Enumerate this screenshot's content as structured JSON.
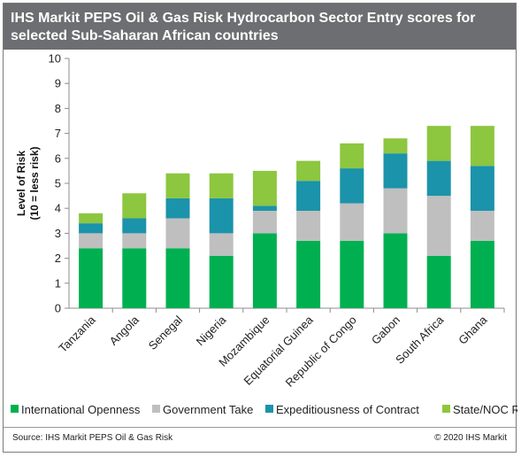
{
  "title": "IHS Markit PEPS Oil & Gas Risk Hydrocarbon Sector Entry scores for selected Sub-Saharan African countries",
  "source": "Source: IHS Markit PEPS Oil & Gas Risk",
  "copyright": "© 2020 IHS Markit",
  "colors": {
    "title_bar": "#6d6e71",
    "international_openness": "#00b050",
    "government_take": "#bfbfbf",
    "expeditiousness": "#1b93aa",
    "state_noc": "#8dc63f"
  },
  "chart_data": {
    "type": "bar",
    "stacked": true,
    "title": "IHS Markit PEPS Oil & Gas Risk Hydrocarbon Sector Entry scores for selected Sub-Saharan African countries",
    "ylabel": "Level of Risk\n(10 = less risk)",
    "xlabel": "",
    "ylim": [
      0,
      10
    ],
    "yticks": [
      0,
      1,
      2,
      3,
      4,
      5,
      6,
      7,
      8,
      9,
      10
    ],
    "grid": false,
    "legend_position": "bottom",
    "categories": [
      "Tanzania",
      "Angola",
      "Senegal",
      "Nigeria",
      "Mozambique",
      "Equatorial Guinea",
      "Republic of Congo",
      "Gabon",
      "South Africa",
      "Ghana"
    ],
    "series": [
      {
        "name": "International Openness",
        "color": "#00b050",
        "values": [
          2.4,
          2.4,
          2.4,
          2.1,
          3.0,
          2.7,
          2.7,
          3.0,
          2.1,
          2.7
        ]
      },
      {
        "name": "Government Take",
        "color": "#bfbfbf",
        "values": [
          0.6,
          0.6,
          1.2,
          0.9,
          0.9,
          1.2,
          1.5,
          1.8,
          2.4,
          1.2
        ]
      },
      {
        "name": "Expeditiousness of Contract",
        "color": "#1b93aa",
        "values": [
          0.4,
          0.6,
          0.8,
          1.4,
          0.2,
          1.2,
          1.4,
          1.4,
          1.4,
          1.8
        ]
      },
      {
        "name": "State/NOC Role",
        "color": "#8dc63f",
        "values": [
          0.4,
          1.0,
          1.0,
          1.0,
          1.4,
          0.8,
          1.0,
          0.6,
          1.4,
          1.6
        ]
      }
    ]
  }
}
